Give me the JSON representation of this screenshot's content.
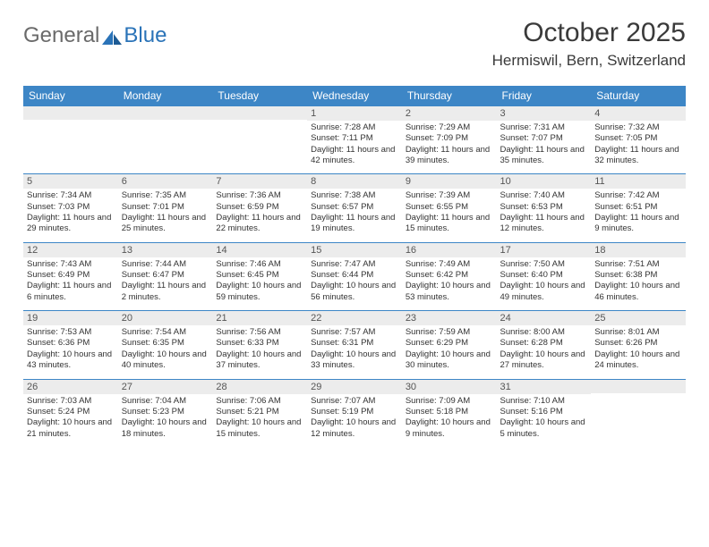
{
  "brand": {
    "part1": "General",
    "part2": "Blue"
  },
  "title": "October 2025",
  "location": "Hermiswil, Bern, Switzerland",
  "colors": {
    "header_bg": "#3d86c6",
    "header_text": "#ffffff",
    "daynum_bg": "#ececec",
    "row_border": "#3d86c6",
    "body_text": "#333333",
    "page_bg": "#ffffff"
  },
  "weekdays": [
    "Sunday",
    "Monday",
    "Tuesday",
    "Wednesday",
    "Thursday",
    "Friday",
    "Saturday"
  ],
  "weeks": [
    [
      {
        "n": "",
        "sunrise": "",
        "sunset": "",
        "daylight": ""
      },
      {
        "n": "",
        "sunrise": "",
        "sunset": "",
        "daylight": ""
      },
      {
        "n": "",
        "sunrise": "",
        "sunset": "",
        "daylight": ""
      },
      {
        "n": "1",
        "sunrise": "Sunrise: 7:28 AM",
        "sunset": "Sunset: 7:11 PM",
        "daylight": "Daylight: 11 hours and 42 minutes."
      },
      {
        "n": "2",
        "sunrise": "Sunrise: 7:29 AM",
        "sunset": "Sunset: 7:09 PM",
        "daylight": "Daylight: 11 hours and 39 minutes."
      },
      {
        "n": "3",
        "sunrise": "Sunrise: 7:31 AM",
        "sunset": "Sunset: 7:07 PM",
        "daylight": "Daylight: 11 hours and 35 minutes."
      },
      {
        "n": "4",
        "sunrise": "Sunrise: 7:32 AM",
        "sunset": "Sunset: 7:05 PM",
        "daylight": "Daylight: 11 hours and 32 minutes."
      }
    ],
    [
      {
        "n": "5",
        "sunrise": "Sunrise: 7:34 AM",
        "sunset": "Sunset: 7:03 PM",
        "daylight": "Daylight: 11 hours and 29 minutes."
      },
      {
        "n": "6",
        "sunrise": "Sunrise: 7:35 AM",
        "sunset": "Sunset: 7:01 PM",
        "daylight": "Daylight: 11 hours and 25 minutes."
      },
      {
        "n": "7",
        "sunrise": "Sunrise: 7:36 AM",
        "sunset": "Sunset: 6:59 PM",
        "daylight": "Daylight: 11 hours and 22 minutes."
      },
      {
        "n": "8",
        "sunrise": "Sunrise: 7:38 AM",
        "sunset": "Sunset: 6:57 PM",
        "daylight": "Daylight: 11 hours and 19 minutes."
      },
      {
        "n": "9",
        "sunrise": "Sunrise: 7:39 AM",
        "sunset": "Sunset: 6:55 PM",
        "daylight": "Daylight: 11 hours and 15 minutes."
      },
      {
        "n": "10",
        "sunrise": "Sunrise: 7:40 AM",
        "sunset": "Sunset: 6:53 PM",
        "daylight": "Daylight: 11 hours and 12 minutes."
      },
      {
        "n": "11",
        "sunrise": "Sunrise: 7:42 AM",
        "sunset": "Sunset: 6:51 PM",
        "daylight": "Daylight: 11 hours and 9 minutes."
      }
    ],
    [
      {
        "n": "12",
        "sunrise": "Sunrise: 7:43 AM",
        "sunset": "Sunset: 6:49 PM",
        "daylight": "Daylight: 11 hours and 6 minutes."
      },
      {
        "n": "13",
        "sunrise": "Sunrise: 7:44 AM",
        "sunset": "Sunset: 6:47 PM",
        "daylight": "Daylight: 11 hours and 2 minutes."
      },
      {
        "n": "14",
        "sunrise": "Sunrise: 7:46 AM",
        "sunset": "Sunset: 6:45 PM",
        "daylight": "Daylight: 10 hours and 59 minutes."
      },
      {
        "n": "15",
        "sunrise": "Sunrise: 7:47 AM",
        "sunset": "Sunset: 6:44 PM",
        "daylight": "Daylight: 10 hours and 56 minutes."
      },
      {
        "n": "16",
        "sunrise": "Sunrise: 7:49 AM",
        "sunset": "Sunset: 6:42 PM",
        "daylight": "Daylight: 10 hours and 53 minutes."
      },
      {
        "n": "17",
        "sunrise": "Sunrise: 7:50 AM",
        "sunset": "Sunset: 6:40 PM",
        "daylight": "Daylight: 10 hours and 49 minutes."
      },
      {
        "n": "18",
        "sunrise": "Sunrise: 7:51 AM",
        "sunset": "Sunset: 6:38 PM",
        "daylight": "Daylight: 10 hours and 46 minutes."
      }
    ],
    [
      {
        "n": "19",
        "sunrise": "Sunrise: 7:53 AM",
        "sunset": "Sunset: 6:36 PM",
        "daylight": "Daylight: 10 hours and 43 minutes."
      },
      {
        "n": "20",
        "sunrise": "Sunrise: 7:54 AM",
        "sunset": "Sunset: 6:35 PM",
        "daylight": "Daylight: 10 hours and 40 minutes."
      },
      {
        "n": "21",
        "sunrise": "Sunrise: 7:56 AM",
        "sunset": "Sunset: 6:33 PM",
        "daylight": "Daylight: 10 hours and 37 minutes."
      },
      {
        "n": "22",
        "sunrise": "Sunrise: 7:57 AM",
        "sunset": "Sunset: 6:31 PM",
        "daylight": "Daylight: 10 hours and 33 minutes."
      },
      {
        "n": "23",
        "sunrise": "Sunrise: 7:59 AM",
        "sunset": "Sunset: 6:29 PM",
        "daylight": "Daylight: 10 hours and 30 minutes."
      },
      {
        "n": "24",
        "sunrise": "Sunrise: 8:00 AM",
        "sunset": "Sunset: 6:28 PM",
        "daylight": "Daylight: 10 hours and 27 minutes."
      },
      {
        "n": "25",
        "sunrise": "Sunrise: 8:01 AM",
        "sunset": "Sunset: 6:26 PM",
        "daylight": "Daylight: 10 hours and 24 minutes."
      }
    ],
    [
      {
        "n": "26",
        "sunrise": "Sunrise: 7:03 AM",
        "sunset": "Sunset: 5:24 PM",
        "daylight": "Daylight: 10 hours and 21 minutes."
      },
      {
        "n": "27",
        "sunrise": "Sunrise: 7:04 AM",
        "sunset": "Sunset: 5:23 PM",
        "daylight": "Daylight: 10 hours and 18 minutes."
      },
      {
        "n": "28",
        "sunrise": "Sunrise: 7:06 AM",
        "sunset": "Sunset: 5:21 PM",
        "daylight": "Daylight: 10 hours and 15 minutes."
      },
      {
        "n": "29",
        "sunrise": "Sunrise: 7:07 AM",
        "sunset": "Sunset: 5:19 PM",
        "daylight": "Daylight: 10 hours and 12 minutes."
      },
      {
        "n": "30",
        "sunrise": "Sunrise: 7:09 AM",
        "sunset": "Sunset: 5:18 PM",
        "daylight": "Daylight: 10 hours and 9 minutes."
      },
      {
        "n": "31",
        "sunrise": "Sunrise: 7:10 AM",
        "sunset": "Sunset: 5:16 PM",
        "daylight": "Daylight: 10 hours and 5 minutes."
      },
      {
        "n": "",
        "sunrise": "",
        "sunset": "",
        "daylight": ""
      }
    ]
  ]
}
